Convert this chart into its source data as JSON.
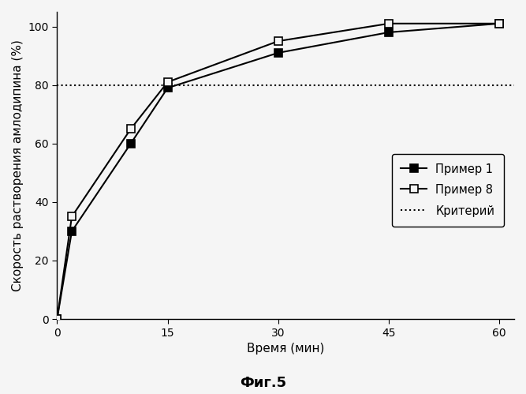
{
  "x": [
    0,
    2,
    10,
    15,
    30,
    45,
    60
  ],
  "primer1_y": [
    0,
    30,
    60,
    79,
    91,
    98,
    101
  ],
  "primer8_y": [
    0,
    35,
    65,
    81,
    95,
    101,
    101
  ],
  "criterion_y": 80,
  "xlabel": "Время (мин)",
  "ylabel": "Скорость растворения амлодипина (%)",
  "legend_primer1": "Пример 1",
  "legend_primer8": "Пример 8",
  "legend_criterion": "Критерий",
  "caption": "Фиг.5",
  "xlim": [
    0,
    62
  ],
  "ylim": [
    0,
    105
  ],
  "xticks": [
    0,
    15,
    30,
    45,
    60
  ],
  "yticks": [
    0,
    20,
    40,
    60,
    80,
    100
  ],
  "line_color": "#000000",
  "bg_color": "#f5f5f5"
}
